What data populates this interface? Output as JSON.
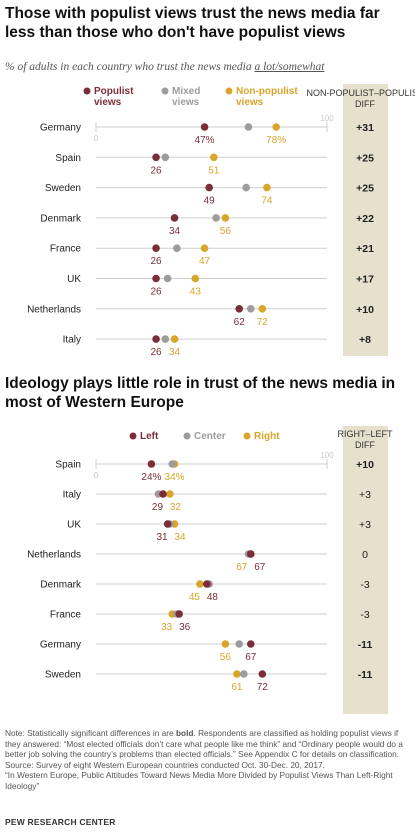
{
  "colors": {
    "populist": "#7a2e39",
    "mixed": "#9c9c9c",
    "non_populist": "#d9a52a",
    "left": "#7a2e39",
    "center": "#9c9c9c",
    "right": "#d9a52a",
    "diff_panel": "#e6e0cc"
  },
  "chart_data": [
    {
      "type": "dot_plot",
      "title": "Those with populist views trust the news media far less than those who don't have populist views",
      "subtitle_prefix": "% of adults in each country who trust the news media ",
      "subtitle_emphasis": "a lot/somewhat",
      "xlim": [
        0,
        100
      ],
      "axis_ticks": [
        "0",
        "100"
      ],
      "diff_header": "NON-POPULIST–POPULIST DIFF",
      "legend": [
        "Populist views",
        "Mixed views",
        "Non-populist views"
      ],
      "categories": [
        "Germany",
        "Spain",
        "Sweden",
        "Denmark",
        "France",
        "UK",
        "Netherlands",
        "Italy"
      ],
      "series": [
        {
          "name": "Populist views",
          "values": [
            47,
            26,
            49,
            34,
            26,
            26,
            62,
            26
          ]
        },
        {
          "name": "Mixed views",
          "values": [
            66,
            30,
            65,
            52,
            35,
            31,
            67,
            30
          ]
        },
        {
          "name": "Non-populist views",
          "values": [
            78,
            51,
            74,
            56,
            47,
            43,
            72,
            34
          ]
        }
      ],
      "populist_labels": [
        "47%",
        "26",
        "49",
        "34",
        "26",
        "26",
        "62",
        "26"
      ],
      "non_populist_labels": [
        "78%",
        "51",
        "74",
        "56",
        "47",
        "43",
        "72",
        "34"
      ],
      "diff": [
        "+31",
        "+25",
        "+25",
        "+22",
        "+21",
        "+17",
        "+10",
        "+8"
      ]
    },
    {
      "type": "dot_plot",
      "title": "Ideology plays little role in trust of the news media in most of Western Europe",
      "xlim": [
        0,
        100
      ],
      "axis_ticks": [
        "0",
        "100"
      ],
      "diff_header": "RIGHT–LEFT DIFF",
      "legend": [
        "Left",
        "Center",
        "Right"
      ],
      "categories": [
        "Spain",
        "Italy",
        "UK",
        "Netherlands",
        "Denmark",
        "France",
        "Germany",
        "Sweden"
      ],
      "series": [
        {
          "name": "Left",
          "values": [
            24,
            29,
            31,
            67,
            48,
            36,
            67,
            72
          ]
        },
        {
          "name": "Center",
          "values": [
            33,
            27,
            32,
            66,
            49,
            35,
            62,
            64
          ]
        },
        {
          "name": "Right",
          "values": [
            34,
            32,
            34,
            67,
            45,
            33,
            56,
            61
          ]
        }
      ],
      "left_labels": [
        "24%",
        "29",
        "31",
        "67",
        "48",
        "36",
        "67",
        "72"
      ],
      "right_labels": [
        "34%",
        "32",
        "34",
        "67",
        "45",
        "33",
        "56",
        "61"
      ],
      "diff": [
        "+10",
        "+3",
        "+3",
        "0",
        "-3",
        "-3",
        "-11",
        "-11"
      ],
      "diff_bold": [
        true,
        false,
        false,
        false,
        false,
        false,
        true,
        true
      ]
    }
  ],
  "notes": {
    "note_pre": "Note: Statistically significant differences in are ",
    "note_bold": "bold",
    "note_post": ". Respondents are classified as holding populist views if they answered: “Most elected officials don’t care what people like me think” and “Ordinary people would do a better job solving the country’s problems than elected officials.” See Appendix C for details on classification.",
    "source": "Source: Survey of eight Western European countries conducted Oct. 30-Dec. 20, 2017.",
    "report": "“In Western Europe, Public Attitudes Toward News Media More Divided by Populist Views Than Left-Right Ideology”"
  },
  "footer": "PEW RESEARCH CENTER"
}
